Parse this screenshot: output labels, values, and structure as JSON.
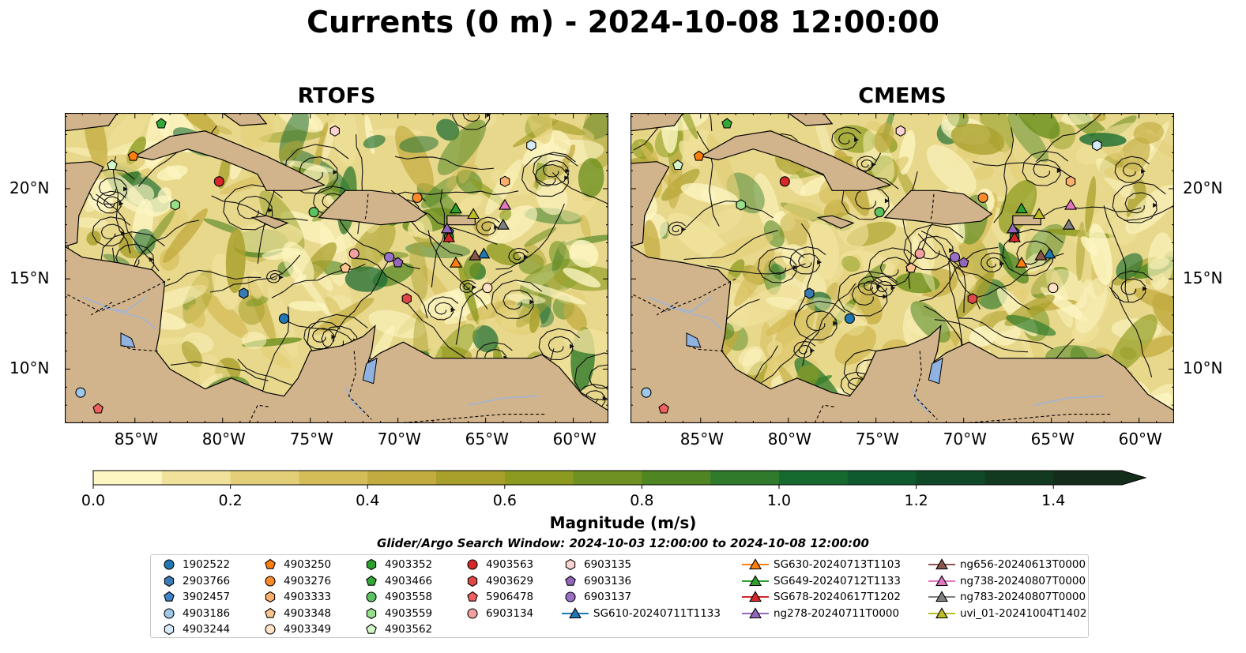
{
  "chart_data": {
    "type": "heatmap",
    "title": "Currents (0 m) - 2024-10-08 12:00:00",
    "panels": [
      {
        "title": "RTOFS"
      },
      {
        "title": "CMEMS"
      }
    ],
    "lon_ticks": [
      {
        "value": -85,
        "label": "85°W"
      },
      {
        "value": -80,
        "label": "80°W"
      },
      {
        "value": -75,
        "label": "75°W"
      },
      {
        "value": -70,
        "label": "70°W"
      },
      {
        "value": -65,
        "label": "65°W"
      },
      {
        "value": -60,
        "label": "60°W"
      }
    ],
    "lat_ticks": [
      {
        "value": 20,
        "label": "20°N"
      },
      {
        "value": 15,
        "label": "15°N"
      },
      {
        "value": 10,
        "label": "10°N"
      }
    ],
    "xlim": [
      -89,
      -58
    ],
    "ylim": [
      7,
      24.2
    ],
    "colorbar": {
      "label": "Magnitude (m/s)",
      "range": [
        0,
        1.5
      ],
      "extend": "max",
      "ticks": [
        {
          "value": 0.0,
          "label": "0.0"
        },
        {
          "value": 0.2,
          "label": "0.2"
        },
        {
          "value": 0.4,
          "label": "0.4"
        },
        {
          "value": 0.6,
          "label": "0.6"
        },
        {
          "value": 0.8,
          "label": "0.8"
        },
        {
          "value": 1.0,
          "label": "1.0"
        },
        {
          "value": 1.2,
          "label": "1.2"
        },
        {
          "value": 1.4,
          "label": "1.4"
        }
      ],
      "colors": [
        "#fdf6c3",
        "#f0e29b",
        "#e3cf77",
        "#d4bc57",
        "#c2ab3f",
        "#a9a02c",
        "#8c9b1f",
        "#6e9121",
        "#4f8622",
        "#2f7a2b",
        "#166a30",
        "#0f5a2f",
        "#104928",
        "#123a21",
        "#142d1b"
      ]
    },
    "search_window": "Glider/Argo Search Window: 2024-10-03 12:00:00 to 2024-10-08 12:00:00",
    "legend": [
      {
        "label": "1902522",
        "marker": "circle",
        "color": "#1f77b4"
      },
      {
        "label": "2903766",
        "marker": "hexagon",
        "color": "#3a7ab5"
      },
      {
        "label": "3902457",
        "marker": "pentagon",
        "color": "#3f86c8"
      },
      {
        "label": "4903186",
        "marker": "circle",
        "color": "#9dc8ea"
      },
      {
        "label": "4903244",
        "marker": "hexagon",
        "color": "#d6ebfa"
      },
      {
        "label": "4903250",
        "marker": "pentagon",
        "color": "#ff7f0e"
      },
      {
        "label": "4903276",
        "marker": "circle",
        "color": "#fb8a2c"
      },
      {
        "label": "4903333",
        "marker": "hexagon",
        "color": "#fdae6b"
      },
      {
        "label": "4903348",
        "marker": "pentagon",
        "color": "#fdc58f"
      },
      {
        "label": "4903349",
        "marker": "circle",
        "color": "#fee3c6"
      },
      {
        "label": "4903352",
        "marker": "hexagon",
        "color": "#2ca02c"
      },
      {
        "label": "4903466",
        "marker": "pentagon",
        "color": "#35a83a"
      },
      {
        "label": "4903558",
        "marker": "circle",
        "color": "#5cc160"
      },
      {
        "label": "4903559",
        "marker": "hexagon",
        "color": "#98df8a"
      },
      {
        "label": "4903562",
        "marker": "pentagon",
        "color": "#d4f5c8"
      },
      {
        "label": "4903563",
        "marker": "circle",
        "color": "#d62728"
      },
      {
        "label": "4903629",
        "marker": "hexagon",
        "color": "#e04848"
      },
      {
        "label": "5906478",
        "marker": "pentagon",
        "color": "#f06060"
      },
      {
        "label": "6903134",
        "marker": "circle",
        "color": "#f4a0a0"
      },
      {
        "label": "6903135",
        "marker": "hexagon",
        "color": "#fcd2d2"
      },
      {
        "label": "6903136",
        "marker": "pentagon",
        "color": "#9467bd"
      },
      {
        "label": "6903137",
        "marker": "circle",
        "color": "#9a70c7"
      },
      {
        "label": "SG610-20240711T1133",
        "marker": "triangle",
        "color": "#1f77b4",
        "line": true
      },
      {
        "label": "SG630-20240713T1103",
        "marker": "triangle",
        "color": "#ff7f0e",
        "line": true
      },
      {
        "label": "SG649-20240712T1133",
        "marker": "triangle",
        "color": "#2ca02c",
        "line": true
      },
      {
        "label": "SG678-20240617T1202",
        "marker": "triangle",
        "color": "#d62728",
        "line": true
      },
      {
        "label": "ng278-20240711T0000",
        "marker": "triangle",
        "color": "#9467bd",
        "line": true
      },
      {
        "label": "ng656-20240613T0000",
        "marker": "triangle",
        "color": "#8c564b",
        "line": true
      },
      {
        "label": "ng738-20240807T0000",
        "marker": "triangle",
        "color": "#e377c2",
        "line": true
      },
      {
        "label": "ng783-20240807T0000",
        "marker": "triangle",
        "color": "#7f7f7f",
        "line": true
      },
      {
        "label": "uvi_01-20241004T1402",
        "marker": "triangle",
        "color": "#bcbd22",
        "line": true
      }
    ],
    "observations": [
      {
        "id": "1902522",
        "lon": -76.5,
        "lat": 12.8
      },
      {
        "id": "2903766",
        "lon": -78.8,
        "lat": 14.2
      },
      {
        "id": "3902457",
        "lon": -67.1,
        "lat": 17.6
      },
      {
        "id": "4903186",
        "lon": -88.1,
        "lat": 8.7
      },
      {
        "id": "4903244",
        "lon": -62.4,
        "lat": 22.4
      },
      {
        "id": "4903250",
        "lon": -85.1,
        "lat": 21.8
      },
      {
        "id": "4903276",
        "lon": -68.9,
        "lat": 19.5
      },
      {
        "id": "4903333",
        "lon": -63.9,
        "lat": 20.4
      },
      {
        "id": "4903348",
        "lon": -73.0,
        "lat": 15.6
      },
      {
        "id": "4903349",
        "lon": -64.9,
        "lat": 14.5
      },
      {
        "id": "4903352",
        "lon": -67.1,
        "lat": 17.3
      },
      {
        "id": "4903466",
        "lon": -83.5,
        "lat": 23.6
      },
      {
        "id": "4903558",
        "lon": -74.8,
        "lat": 18.7
      },
      {
        "id": "4903559",
        "lon": -82.7,
        "lat": 19.1
      },
      {
        "id": "4903562",
        "lon": -86.3,
        "lat": 21.3
      },
      {
        "id": "4903563",
        "lon": -80.2,
        "lat": 20.4
      },
      {
        "id": "4903629",
        "lon": -69.5,
        "lat": 13.9
      },
      {
        "id": "5906478",
        "lon": -87.1,
        "lat": 7.8
      },
      {
        "id": "6903134",
        "lon": -72.5,
        "lat": 16.4
      },
      {
        "id": "6903135",
        "lon": -73.6,
        "lat": 23.2
      },
      {
        "id": "6903136",
        "lon": -70.0,
        "lat": 15.9
      },
      {
        "id": "6903137",
        "lon": -70.5,
        "lat": 16.2
      },
      {
        "id": "SG610-20240711T1133",
        "lon": -65.1,
        "lat": 16.4
      },
      {
        "id": "SG630-20240713T1103",
        "lon": -66.7,
        "lat": 15.9
      },
      {
        "id": "SG649-20240712T1133",
        "lon": -66.7,
        "lat": 18.9
      },
      {
        "id": "SG678-20240617T1202",
        "lon": -67.1,
        "lat": 17.3
      },
      {
        "id": "ng278-20240711T0000",
        "lon": -67.2,
        "lat": 17.8
      },
      {
        "id": "ng656-20240613T0000",
        "lon": -65.6,
        "lat": 16.3
      },
      {
        "id": "ng738-20240807T0000",
        "lon": -63.9,
        "lat": 19.1
      },
      {
        "id": "ng783-20240807T0000",
        "lon": -64.0,
        "lat": 18.0
      },
      {
        "id": "uvi_01-20241004T1402",
        "lon": -65.7,
        "lat": 18.6
      }
    ]
  }
}
